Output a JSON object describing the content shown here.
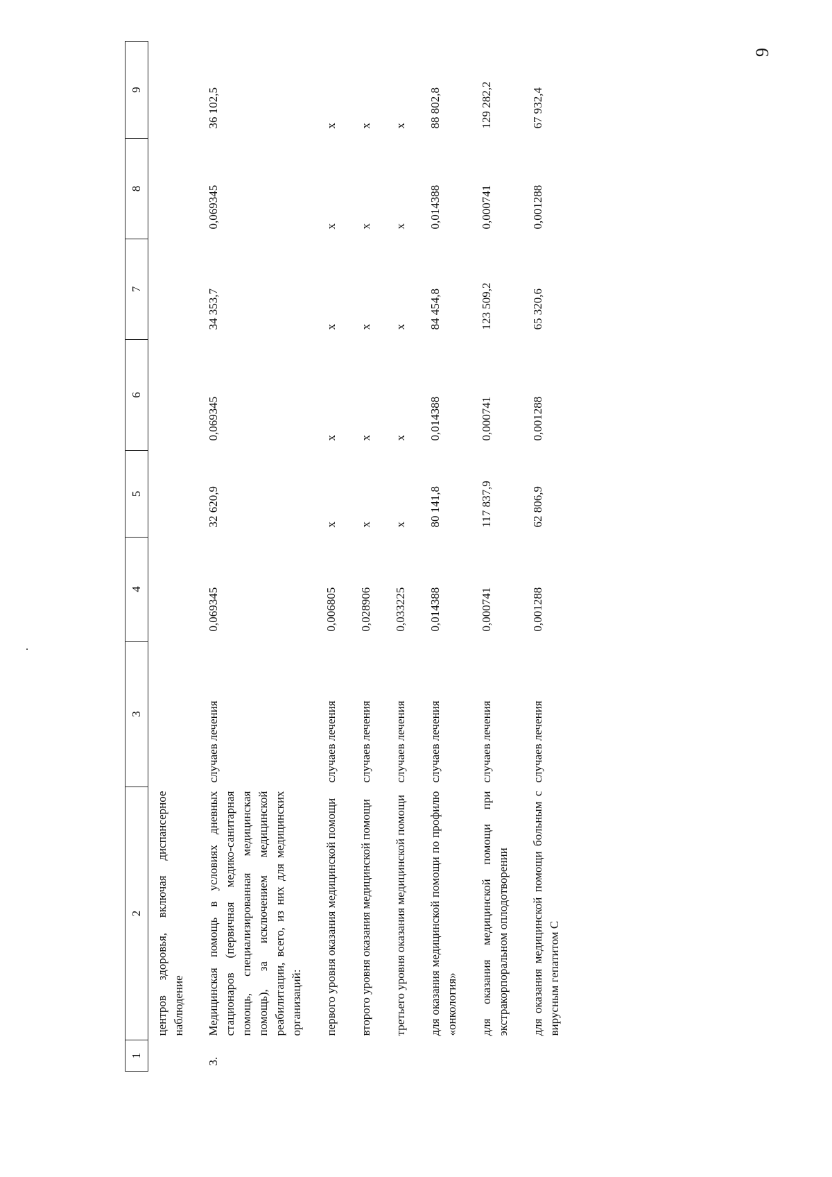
{
  "page_number": "9",
  "table": {
    "headers": [
      "1",
      "2",
      "3",
      "4",
      "5",
      "6",
      "7",
      "8",
      "9"
    ],
    "rows": [
      {
        "c1": "",
        "c2": "центров здоровья, включая диспансерное наблюдение",
        "c3": "",
        "c4": "",
        "c5": "",
        "c6": "",
        "c7": "",
        "c8": "",
        "c9": ""
      },
      {
        "c1": "3.",
        "c2": "Медицинская помощь в условиях дневных стационаров (первичная медико-санитарная помощь, специализированная медицинская помощь), за исключением медицинской реабилитации, всего, из них для медицинских организаций:",
        "c3": "случаев лечения",
        "c4": "0,069345",
        "c5": "32 620,9",
        "c6": "0,069345",
        "c7": "34 353,7",
        "c8": "0,069345",
        "c9": "36 102,5"
      },
      {
        "c1": "",
        "c2": "первого уровня оказания медицинской помощи",
        "c3": "случаев лечения",
        "c4": "0,006805",
        "c5": "х",
        "c6": "х",
        "c7": "х",
        "c8": "х",
        "c9": "х"
      },
      {
        "c1": "",
        "c2": "второго уровня оказания медицинской помощи",
        "c3": "случаев лечения",
        "c4": "0,028906",
        "c5": "х",
        "c6": "х",
        "c7": "х",
        "c8": "х",
        "c9": "х"
      },
      {
        "c1": "",
        "c2": "третьего уровня оказания медицинской помощи",
        "c3": "случаев лечения",
        "c4": "0,033225",
        "c5": "х",
        "c6": "х",
        "c7": "х",
        "c8": "х",
        "c9": "х"
      },
      {
        "c1": "",
        "c2": "для оказания медицинской помощи по профилю «онкология»",
        "c3": "случаев лечения",
        "c4": "0,014388",
        "c5": "80 141,8",
        "c6": "0,014388",
        "c7": "84 454,8",
        "c8": "0,014388",
        "c9": "88 802,8"
      },
      {
        "c1": "",
        "c2": "для оказания медицинской помощи при экстракорпоральном оплодотворении",
        "c3": "случаев лечения",
        "c4": "0,000741",
        "c5": "117 837,9",
        "c6": "0,000741",
        "c7": "123 509,2",
        "c8": "0,000741",
        "c9": "129 282,2"
      },
      {
        "c1": "",
        "c2": "для оказания медицинской помощи больным с вирусным гепатитом С",
        "c3": "случаев лечения",
        "c4": "0,001288",
        "c5": "62 806,9",
        "c6": "0,001288",
        "c7": "65 320,6",
        "c8": "0,001288",
        "c9": "67 932,4"
      }
    ]
  }
}
